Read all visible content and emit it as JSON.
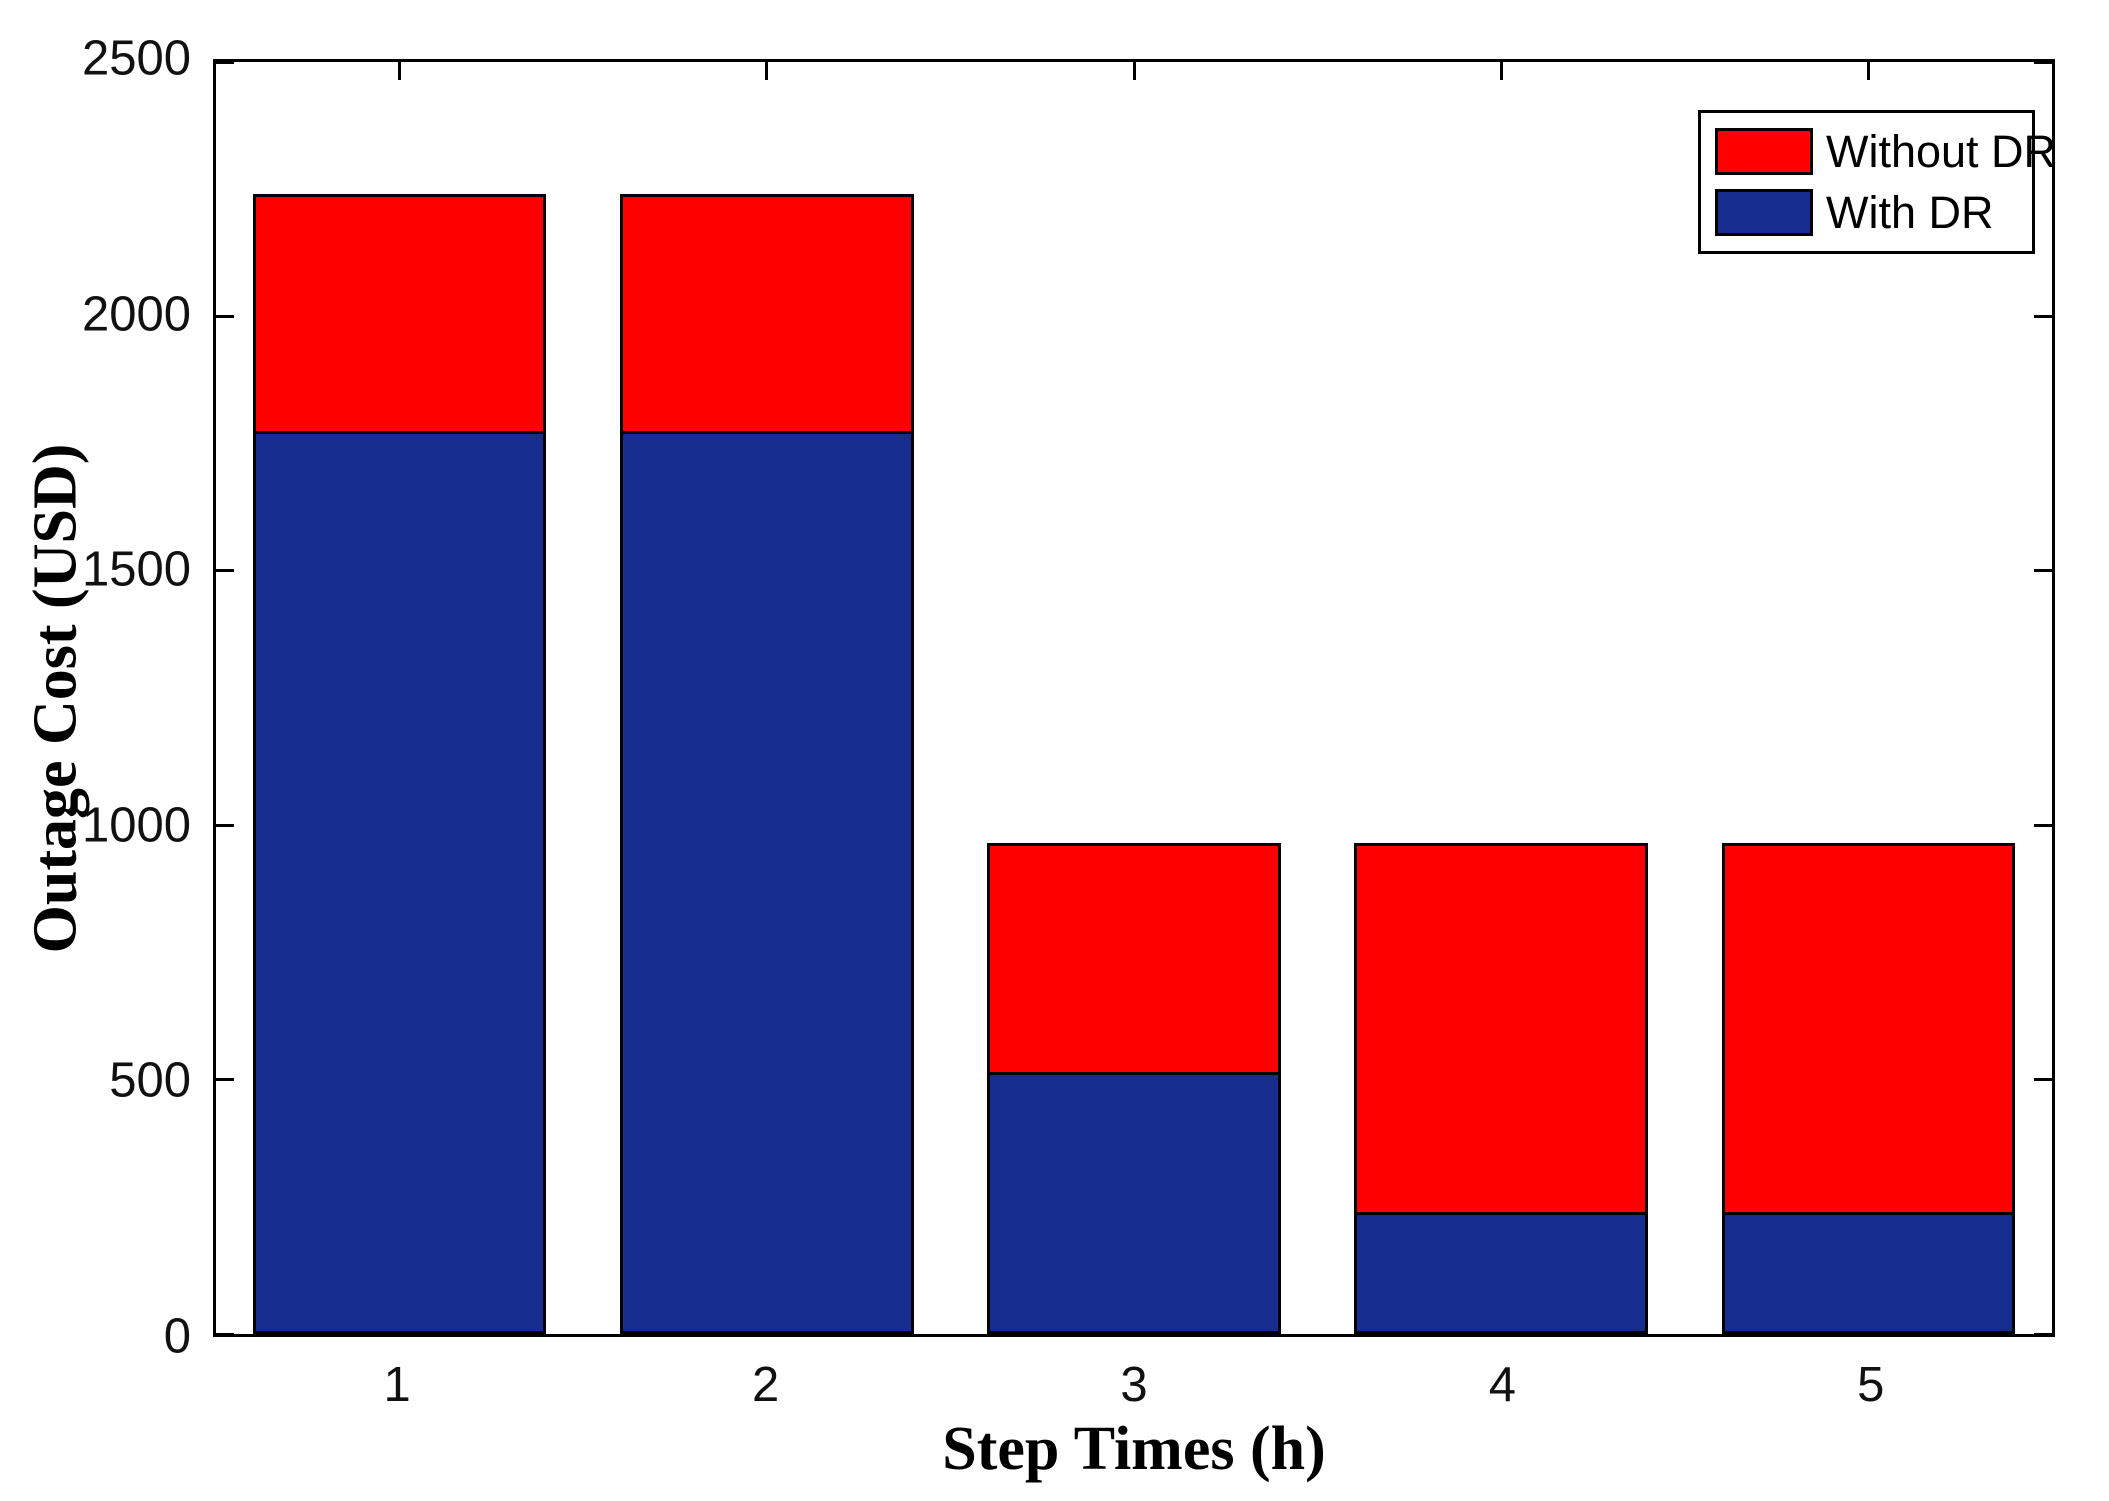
{
  "figure": {
    "background": "#ffffff",
    "axis_color": "#000000",
    "tick_label_color": "#111111"
  },
  "chart_data": {
    "type": "bar",
    "mode": "overlay",
    "title": "",
    "xlabel": "Step Times (h)",
    "ylabel": "Outage Cost (USD)",
    "categories": [
      "1",
      "2",
      "3",
      "4",
      "5"
    ],
    "series": [
      {
        "name": "Without DR",
        "color": "#ff0000",
        "values": [
          2240,
          2240,
          965,
          965,
          965
        ]
      },
      {
        "name": "With DR",
        "color": "#162c8e",
        "values": [
          1775,
          1775,
          515,
          240,
          240
        ]
      }
    ],
    "ylim": [
      0,
      2500
    ],
    "yticks": [
      0,
      500,
      1000,
      1500,
      2000,
      2500
    ],
    "ytick_labels": [
      "0",
      "500",
      "1000",
      "1500",
      "2000",
      "2500"
    ],
    "bar_width_fraction": 0.8,
    "grid": false,
    "legend_position": "top-right",
    "box": true,
    "tick_direction": "in"
  }
}
